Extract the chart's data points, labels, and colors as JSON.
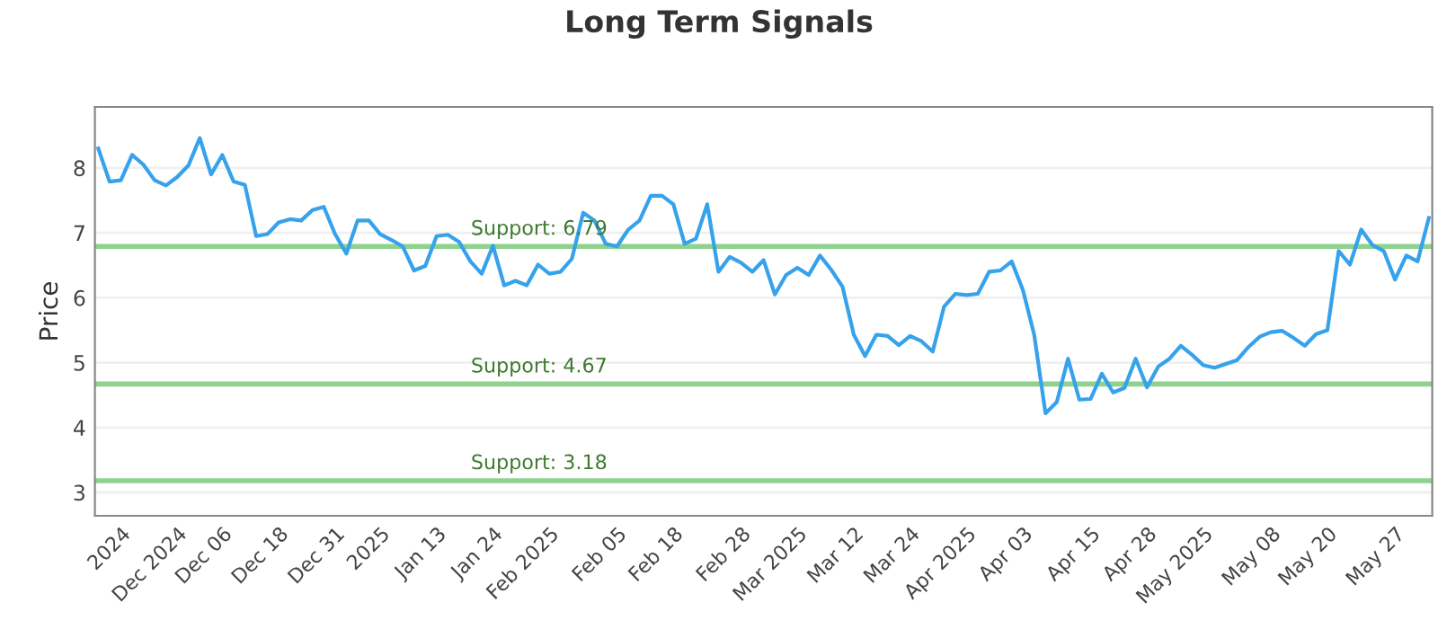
{
  "chart_data": {
    "type": "line",
    "title": "Long Term Signals",
    "ylabel": "Price",
    "categories": [
      null,
      null,
      "2024",
      null,
      null,
      null,
      null,
      "Dec 2024",
      null,
      null,
      null,
      "Dec 06",
      null,
      null,
      null,
      null,
      "Dec 18",
      null,
      null,
      null,
      null,
      "Dec 31",
      null,
      null,
      null,
      "2025",
      null,
      null,
      null,
      null,
      "Jan 13",
      null,
      null,
      null,
      null,
      "Jan 24",
      null,
      null,
      null,
      null,
      "Feb 2025",
      null,
      null,
      null,
      null,
      null,
      "Feb 05",
      null,
      null,
      null,
      null,
      "Feb 18",
      null,
      null,
      null,
      null,
      null,
      "Feb 28",
      null,
      null,
      null,
      null,
      "Mar 2025",
      null,
      null,
      null,
      null,
      "Mar 12",
      null,
      null,
      null,
      null,
      "Mar 24",
      null,
      null,
      null,
      null,
      "Apr 2025",
      null,
      null,
      null,
      null,
      "Apr 03",
      null,
      null,
      null,
      null,
      null,
      "Apr 15",
      null,
      null,
      null,
      null,
      "Apr 28",
      null,
      null,
      null,
      null,
      "May 2025",
      null,
      null,
      null,
      null,
      null,
      "May 08",
      null,
      null,
      null,
      null,
      "May 20",
      null,
      null,
      null,
      null,
      null,
      "May 27",
      null,
      null,
      null
    ],
    "series": [
      {
        "color": "#36a2eb",
        "values": [
          8.3,
          7.79,
          7.81,
          8.2,
          8.05,
          7.81,
          7.73,
          7.86,
          8.04,
          8.46,
          7.9,
          8.2,
          7.79,
          7.74,
          6.95,
          6.98,
          7.16,
          7.21,
          7.19,
          7.35,
          7.4,
          6.98,
          6.68,
          7.19,
          7.19,
          6.98,
          6.89,
          6.79,
          6.42,
          6.49,
          6.95,
          6.97,
          6.86,
          6.56,
          6.37,
          6.8,
          6.19,
          6.26,
          6.19,
          6.51,
          6.37,
          6.4,
          6.6,
          7.31,
          7.19,
          6.83,
          6.79,
          7.05,
          7.19,
          7.57,
          7.57,
          7.44,
          6.83,
          6.91,
          7.44,
          6.4,
          6.63,
          6.54,
          6.4,
          6.58,
          6.05,
          6.35,
          6.46,
          6.35,
          6.65,
          6.43,
          6.17,
          5.43,
          5.1,
          5.43,
          5.41,
          5.27,
          5.41,
          5.33,
          5.17,
          5.86,
          6.06,
          6.04,
          6.06,
          6.4,
          6.42,
          6.56,
          6.12,
          5.43,
          4.22,
          4.39,
          5.06,
          4.43,
          4.44,
          4.83,
          4.54,
          4.61,
          5.06,
          4.62,
          4.94,
          5.06,
          5.26,
          5.12,
          4.96,
          4.92,
          4.98,
          5.04,
          5.24,
          5.4,
          5.47,
          5.49,
          5.38,
          5.26,
          5.44,
          5.5,
          6.72,
          6.51,
          7.05,
          6.81,
          6.72,
          6.28,
          6.65,
          6.56,
          7.23
        ]
      }
    ],
    "ylim": [
      2.64,
      8.94
    ],
    "yticks": [
      3,
      4,
      5,
      6,
      7,
      8
    ],
    "ref_lines": [
      {
        "axis": "y",
        "value": 6.79,
        "label": "Support: 6.79",
        "color": "#8fd18f"
      },
      {
        "axis": "y",
        "value": 4.67,
        "label": "Support: 4.67",
        "color": "#8fd18f"
      },
      {
        "axis": "y",
        "value": 3.18,
        "label": "Support: 3.18",
        "color": "#8fd18f"
      }
    ],
    "grid": "y",
    "marker": "none",
    "line_style": "solid"
  }
}
